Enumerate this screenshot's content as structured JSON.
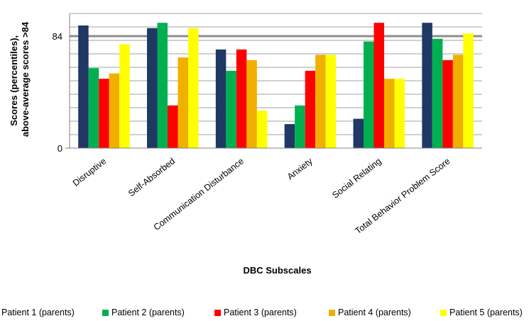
{
  "chart_data": {
    "type": "bar",
    "xlabel": "DBC Subscales",
    "ylabel_lines": [
      "Scores (percentiles),",
      "above-average scores >84"
    ],
    "ylim": [
      0,
      101
    ],
    "y_ticks": [
      "0",
      "84"
    ],
    "y_tick_values": [
      0,
      84
    ],
    "reference_line": 84,
    "grid": true,
    "legend_position": "bottom",
    "categories": [
      "Disruptive",
      "Self-Absorbed",
      "Communication Disturbance",
      "Anxiety",
      "Social Relating",
      "Total Behavior Problem Score"
    ],
    "series": [
      {
        "name": "Patient 1 (parents)",
        "color": "#1f3864",
        "values": [
          92,
          90,
          74,
          18,
          22,
          94
        ]
      },
      {
        "name": "Patient 2 (parents)",
        "color": "#00b050",
        "values": [
          60,
          94,
          58,
          32,
          80,
          82
        ]
      },
      {
        "name": "Patient 3 (parents)",
        "color": "#ff0000",
        "values": [
          52,
          32,
          74,
          58,
          94,
          66
        ]
      },
      {
        "name": "Patient 4 (parents)",
        "color": "#f0b000",
        "values": [
          56,
          68,
          66,
          70,
          52,
          70
        ]
      },
      {
        "name": "Patient 5 (parents)",
        "color": "#ffff00",
        "values": [
          78,
          90,
          28,
          70,
          52,
          86
        ]
      }
    ]
  }
}
